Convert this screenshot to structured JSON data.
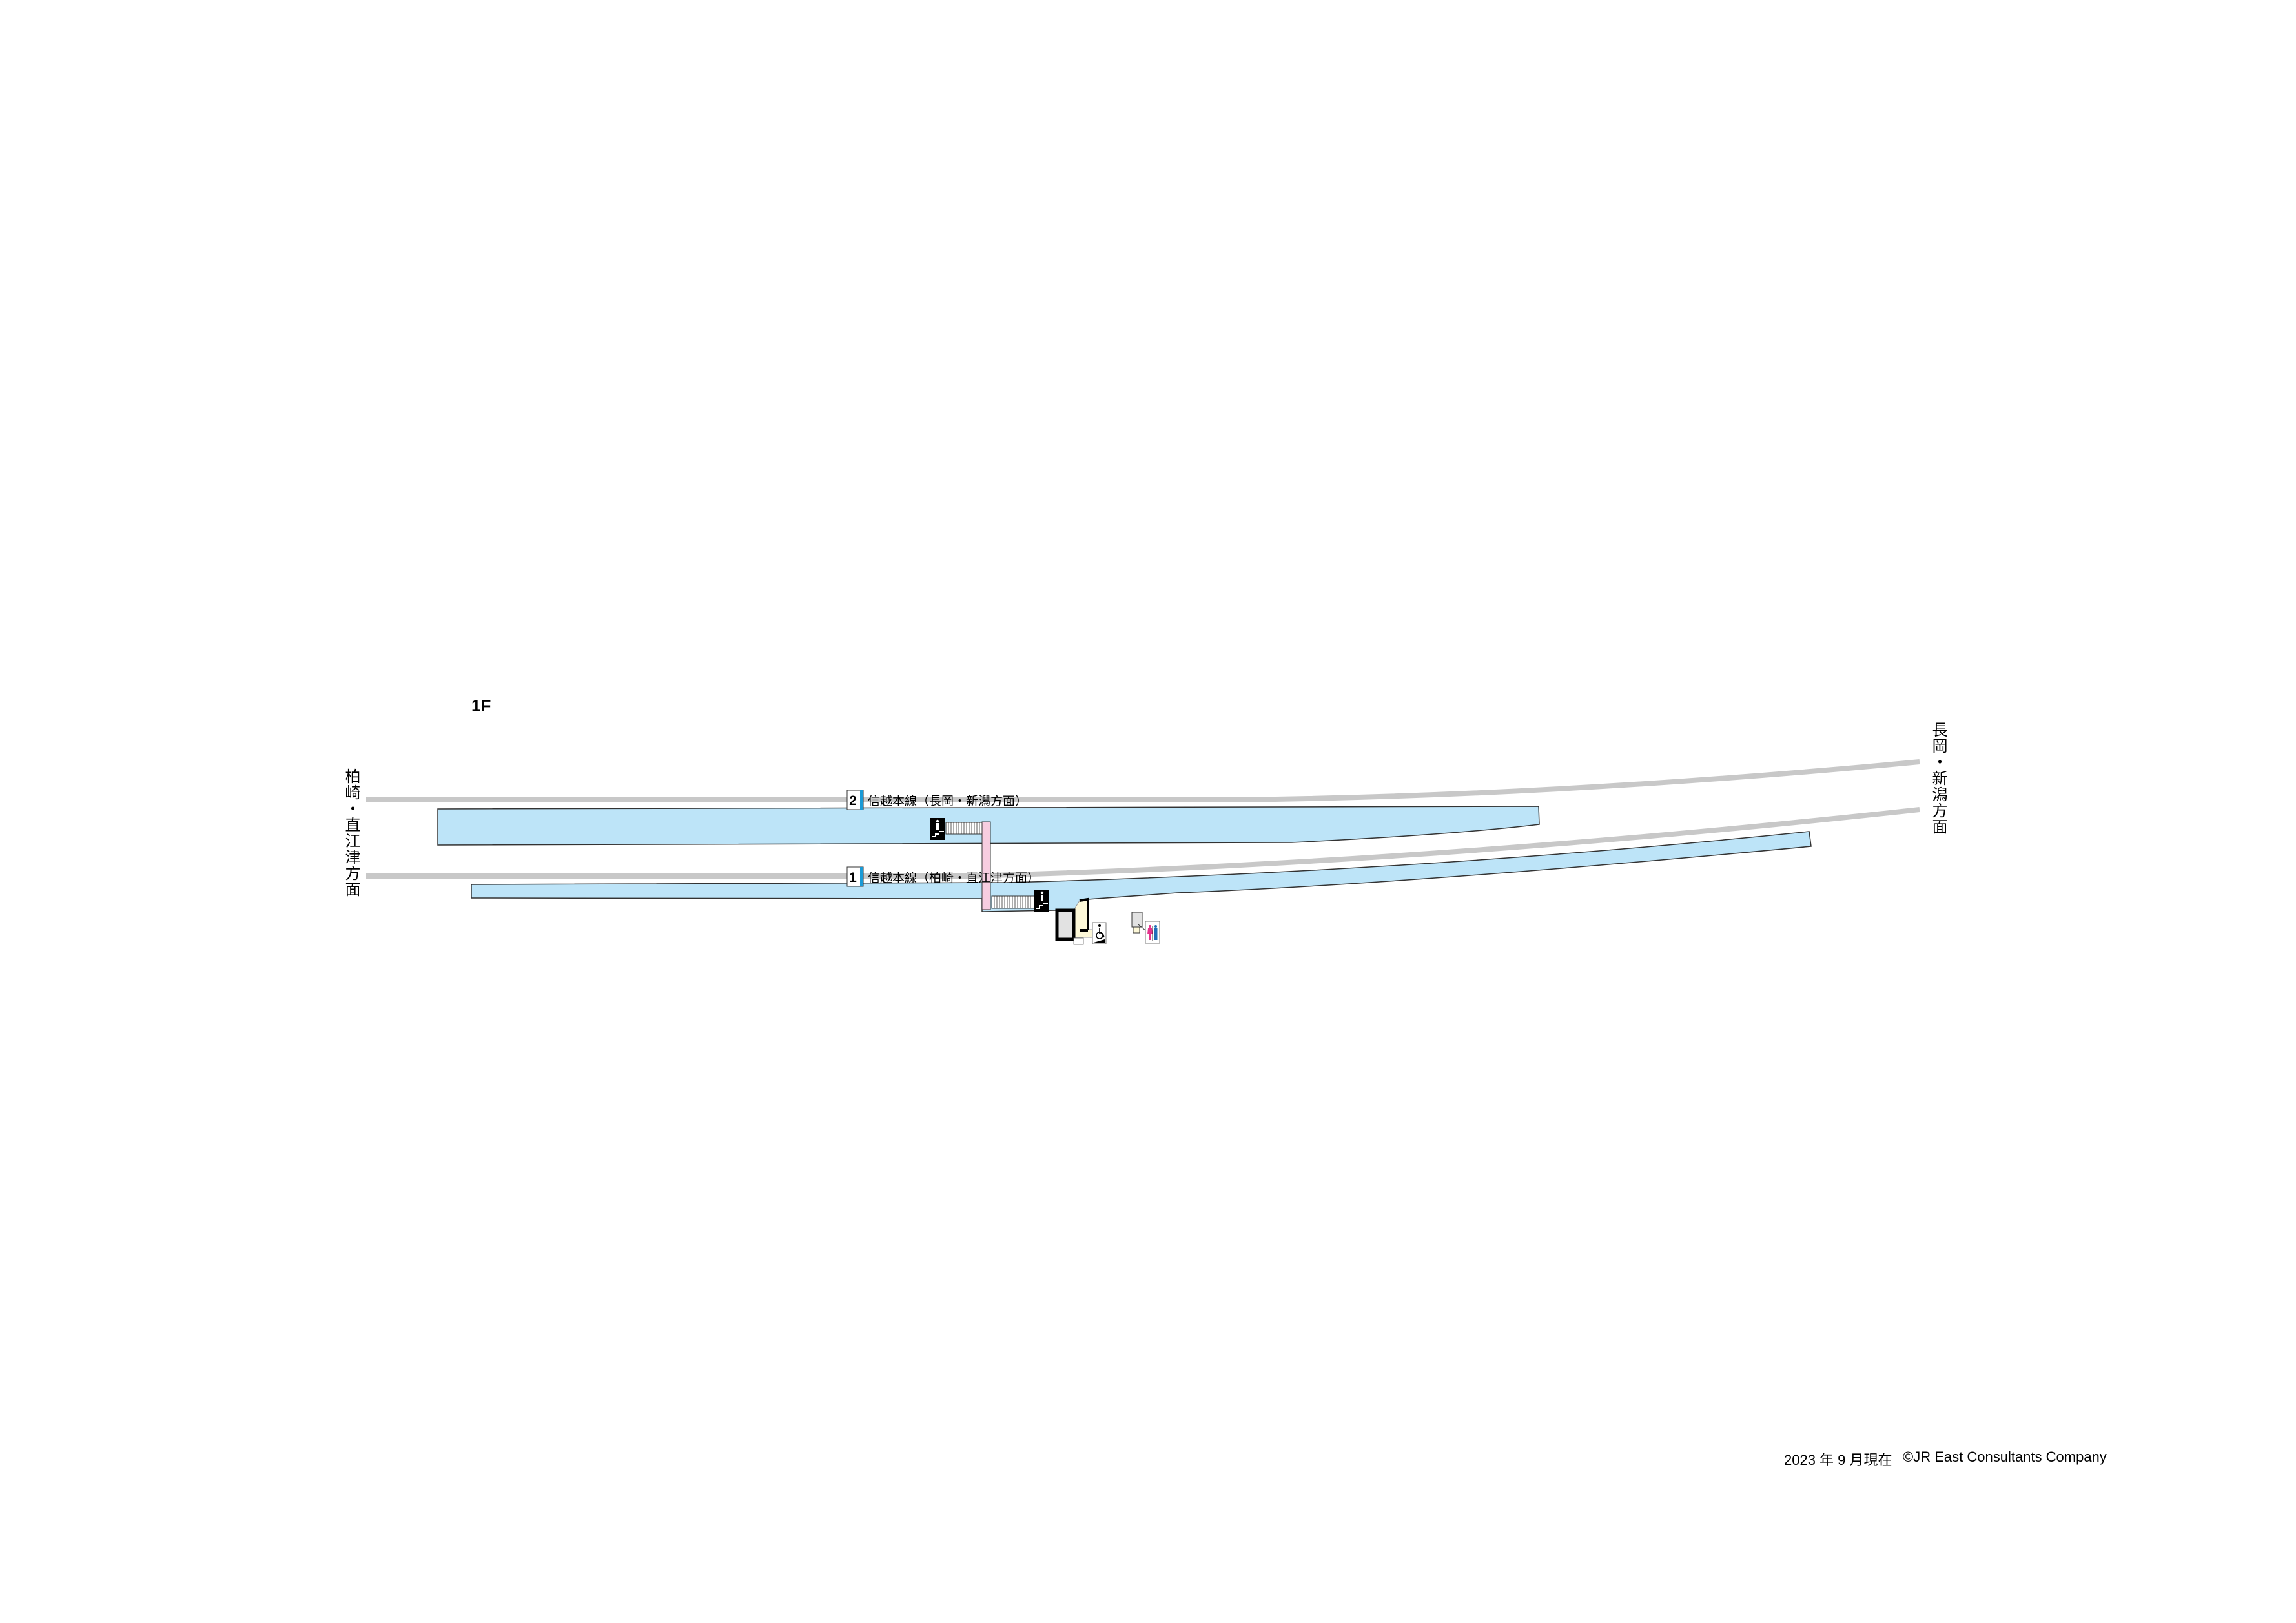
{
  "floor_label": "1F",
  "directions": {
    "left": "柏崎・直江津方面",
    "right": "長岡・新潟方面"
  },
  "tracks": [
    {
      "number": "2",
      "label": "信越本線（長岡・新潟方面）"
    },
    {
      "number": "1",
      "label": "信越本線（柏崎・直江津方面）"
    }
  ],
  "icons": [
    "stairs-up-icon",
    "stairs-up-icon",
    "wheelchair-ramp-icon",
    "restroom-icon",
    "ticket-machine-icon"
  ],
  "colors": {
    "platform": "#bde4f8",
    "track": "#c8c8c8",
    "bridge": "#f7cde0",
    "track_sign_accent": "#1a9ad6",
    "building_fill": "#e2e2e2",
    "concourse": "#fdf8d8",
    "women": "#e5338d",
    "men": "#1f6fb8"
  },
  "footer": {
    "date": "2023 年 9 月現在",
    "copyright": "©JR East Consultants Company"
  }
}
